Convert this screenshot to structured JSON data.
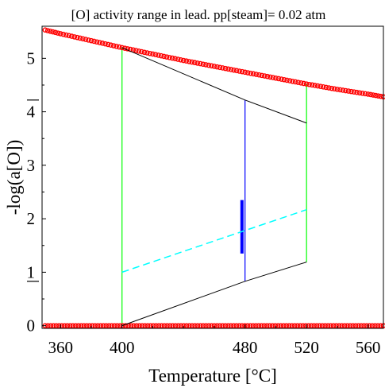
{
  "chart_data": {
    "type": "line",
    "title": "[O] activity range in lead. pp[steam]= 0.02 atm",
    "xlabel": "Temperature [°C]",
    "ylabel": "-log(a[O])",
    "xlim": [
      348,
      570
    ],
    "ylim": [
      -0.05,
      5.6
    ],
    "xticks": [
      360,
      400,
      480,
      520,
      560
    ],
    "yticks": [
      0,
      1,
      2,
      3,
      4,
      5
    ],
    "grid": false,
    "series": [
      {
        "name": "",
        "style": "markers",
        "color": "#ff0000",
        "x": [
          350,
          360,
          380,
          400,
          420,
          440,
          460,
          480,
          500,
          520,
          540,
          560,
          570
        ],
        "y": [
          5.53,
          5.46,
          5.33,
          5.2,
          5.08,
          4.96,
          4.85,
          4.74,
          4.63,
          4.52,
          4.42,
          4.33,
          4.28
        ]
      },
      {
        "name": "",
        "style": "markers",
        "color": "#ff0000",
        "x": [
          350,
          570
        ],
        "y": [
          0,
          0
        ]
      },
      {
        "name": "",
        "style": "solid",
        "color": "#000000",
        "x": [
          400,
          480,
          520
        ],
        "y": [
          5.2,
          4.22,
          3.79
        ]
      },
      {
        "name": "",
        "style": "solid",
        "color": "#000000",
        "x": [
          400,
          480,
          520
        ],
        "y": [
          0,
          0.83,
          1.19
        ]
      },
      {
        "name": "",
        "style": "dashed",
        "color": "#00ffff",
        "x": [
          400,
          520
        ],
        "y": [
          1.0,
          2.17
        ]
      }
    ],
    "vertical_lines": [
      {
        "x": 400,
        "y": [
          0,
          5.2
        ],
        "color": "#00ff00"
      },
      {
        "x": 520,
        "y": [
          1.19,
          4.52
        ],
        "color": "#00ff00"
      },
      {
        "x": 480,
        "y": [
          0.83,
          4.22
        ],
        "color": "#0000ff"
      }
    ],
    "range_bar": {
      "x": 478,
      "y": [
        1.35,
        2.35
      ],
      "color": "#0000ff"
    },
    "side_marks": [
      4.22,
      0.83
    ]
  }
}
